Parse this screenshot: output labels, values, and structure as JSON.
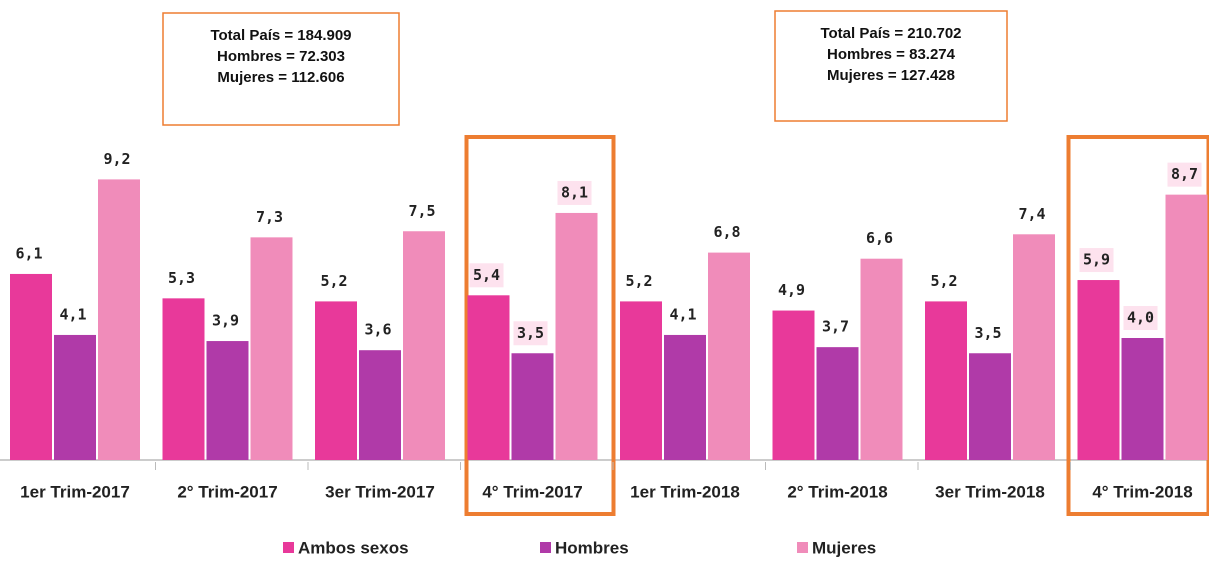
{
  "chart_data": {
    "type": "bar",
    "categories": [
      "1er Trim-2017",
      "2° Trim-2017",
      "3er Trim-2017",
      "4° Trim-2017",
      "1er Trim-2018",
      "2° Trim-2018",
      "3er Trim-2018",
      "4° Trim-2018"
    ],
    "series": [
      {
        "name": "Ambos sexos",
        "color": "#e8399a",
        "values": [
          6.1,
          5.3,
          5.2,
          5.4,
          5.2,
          4.9,
          5.2,
          5.9
        ],
        "value_labels": [
          "6,1",
          "5,3",
          "5,2",
          "5,4",
          "5,2",
          "4,9",
          "5,2",
          "5,9"
        ]
      },
      {
        "name": "Hombres",
        "color": "#b03aa8",
        "values": [
          4.1,
          3.9,
          3.6,
          3.5,
          4.1,
          3.7,
          3.5,
          4.0
        ],
        "value_labels": [
          "4,1",
          "3,9",
          "3,6",
          "3,5",
          "4,1",
          "3,7",
          "3,5",
          "4,0"
        ]
      },
      {
        "name": "Mujeres",
        "color": "#f08cba",
        "values": [
          9.2,
          7.3,
          7.5,
          8.1,
          6.8,
          6.6,
          7.4,
          8.7
        ],
        "value_labels": [
          "9,2",
          "7,3",
          "7,5",
          "8,1",
          "6,8",
          "6,6",
          "7,4",
          "8,7"
        ]
      }
    ],
    "highlight": [
      3,
      7
    ],
    "highlight_color": "#ed7d31",
    "annotations": [
      [
        "Total País = 184.909",
        "Hombres = 72.303",
        "Mujeres = 112.606"
      ],
      [
        "Total País = 210.702",
        "Hombres = 83.274",
        "Mujeres = 127.428"
      ]
    ]
  }
}
